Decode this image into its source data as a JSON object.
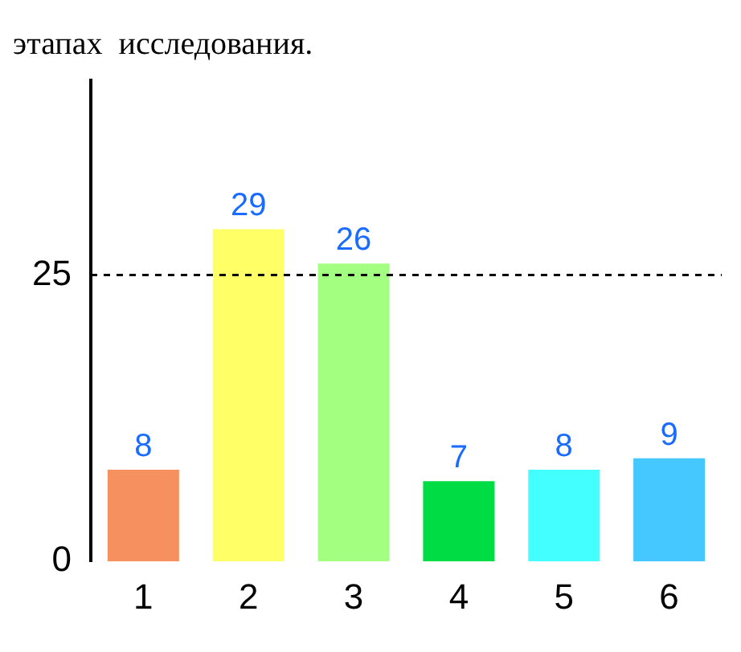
{
  "chart_data": {
    "type": "bar",
    "title": "этапах  исследования.",
    "categories": [
      "1",
      "2",
      "3",
      "4",
      "5",
      "6"
    ],
    "values": [
      8,
      29,
      26,
      7,
      8,
      9
    ],
    "colors": [
      "#f7905f",
      "#ffff66",
      "#a3ff7f",
      "#00dd44",
      "#44ffff",
      "#44c8ff"
    ],
    "ylim": [
      0,
      42
    ],
    "yticks": [
      0,
      25
    ],
    "grid": false,
    "legend": false,
    "data_labels": true,
    "ref_lines": [
      {
        "axis": "y",
        "value": 25,
        "line_style": "dashed",
        "color": "#000000"
      }
    ]
  }
}
